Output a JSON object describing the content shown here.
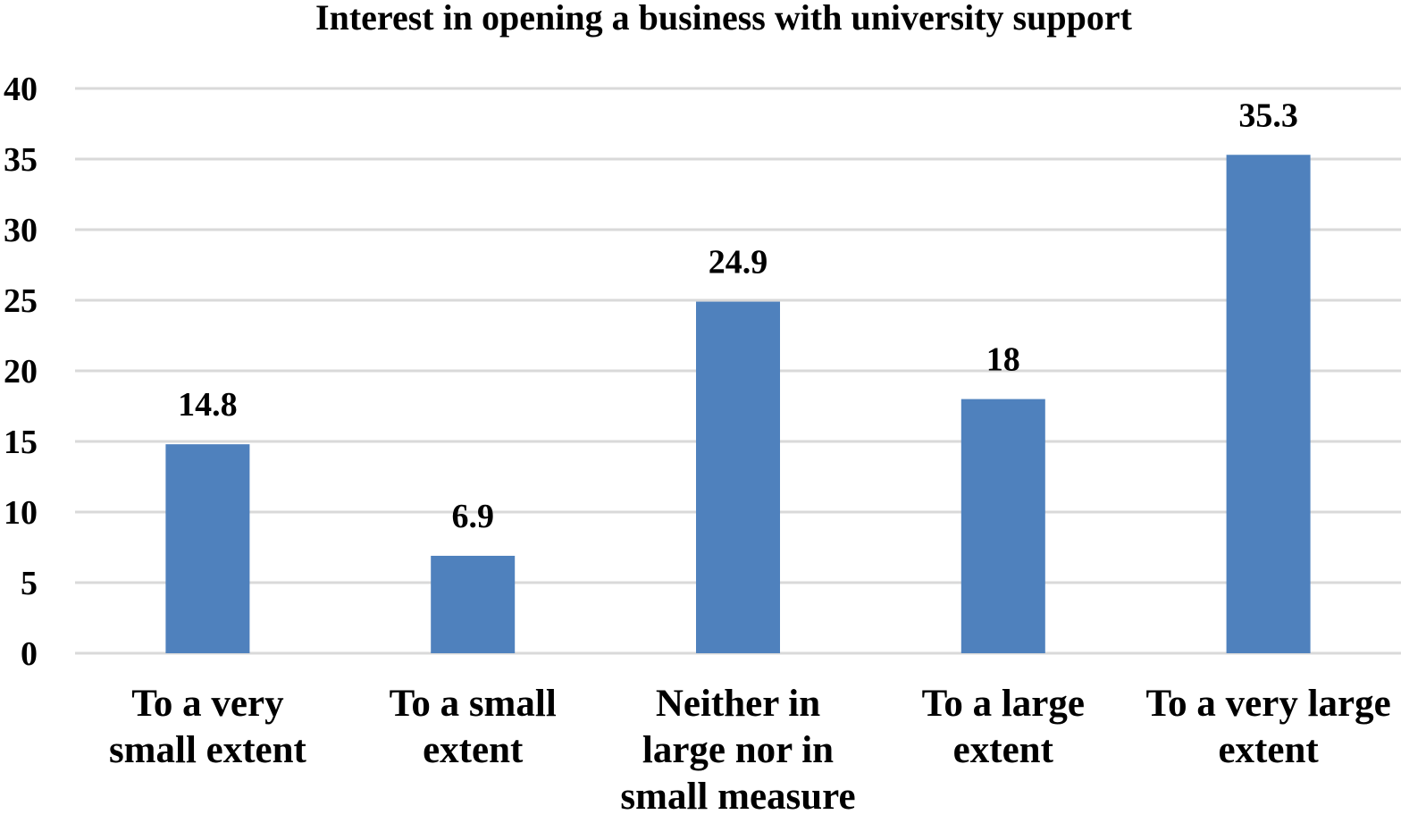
{
  "chart_data": {
    "type": "bar",
    "title": "Interest in opening a business with university support",
    "xlabel": "",
    "ylabel": "",
    "ylim": [
      0,
      40
    ],
    "yticks": [
      0,
      5,
      10,
      15,
      20,
      25,
      30,
      35,
      40
    ],
    "grid": true,
    "legend": "none",
    "bar_color": "#4f81bd",
    "categories": [
      [
        "To a very",
        "small extent"
      ],
      [
        "To a small",
        "extent"
      ],
      [
        "Neither in",
        "large nor in",
        "small measure"
      ],
      [
        "To a large",
        "extent"
      ],
      [
        "To a very large",
        "extent"
      ]
    ],
    "values": [
      14.8,
      6.9,
      24.9,
      18,
      35.3
    ],
    "data_labels": [
      "14.8",
      "6.9",
      "24.9",
      "18",
      "35.3"
    ]
  }
}
